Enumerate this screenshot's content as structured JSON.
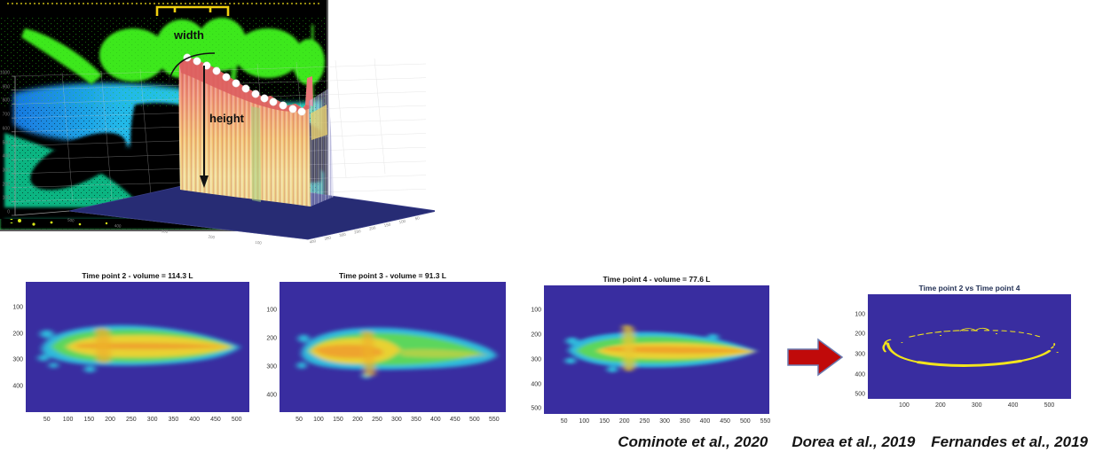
{
  "page": {
    "background": "#ffffff"
  },
  "colors": {
    "arrow_red": "#c00a0a",
    "arrow_border": "#6a7ab0",
    "heatmap_background": "#392da0",
    "blob_edge_cyan": "#2fb9dd",
    "blob_mid_green": "#5bd65b",
    "blob_core_yellow": "#e8d232",
    "blob_hot_orange": "#ee9f2c",
    "difference_yellow": "#f2e41c",
    "floor_navy": "#272c74",
    "depth_bg_cyan": "#1cc6f2",
    "depth_bg_green": "#3cec66",
    "cow_green": "#55e41c"
  },
  "citations": [
    "Cominote et al., 2020",
    "Dorea et al., 2019",
    "Fernandes et al., 2019"
  ],
  "chart_data": [
    {
      "panel": "depth-image-top-view",
      "type": "heatmap",
      "title": "",
      "description": "3D depth-camera point cloud, top view: six green cow bodies over a cyan-to-green depth-gradient floor, black occlusion shadows, feed fence stripes at left, scattered black speckle noise"
    },
    {
      "panel": "depth-image-rear-view",
      "type": "heatmap",
      "title": "",
      "description": "3D depth-camera point cloud, rear view: green cow backs along the top, cyan depth band across the middle, black cow silhouettes feeding below, yellow calibration bracket at top"
    },
    {
      "panel": "surface-3d-cow-body",
      "type": "heatmap",
      "subtype": "3d-surface",
      "title": "",
      "width_label": "width",
      "height_label": "height",
      "marker_dots": 13,
      "z_axis": {
        "ticks": [
          1000,
          900,
          800,
          700,
          600,
          500,
          400,
          300,
          200,
          100,
          0
        ],
        "max": 1000,
        "dir": "y-inv"
      },
      "x_axis": {
        "ticks": [
          500,
          400,
          300,
          200,
          100
        ],
        "max": 500,
        "dir": "x-inv"
      },
      "y_axis": {
        "ticks": [
          400,
          350,
          300,
          250,
          200,
          150,
          100,
          50
        ],
        "max": 400,
        "dir": "x-inv"
      },
      "description": "MATLAB 3D surface of an extracted cow body: red-to-yellow striped surface standing on a dark navy floor, white marker dots along the spine, black arrows annotating width and height"
    },
    {
      "panel": "feed-pile-time-point-2",
      "type": "heatmap",
      "title": "Time point 2 - volume = 114.3 L",
      "volume_liters": 114.3,
      "colormap": "parula",
      "x_axis": {
        "ticks": [
          50,
          100,
          150,
          200,
          250,
          300,
          350,
          400,
          450,
          500
        ],
        "max": 530,
        "dir": "x"
      },
      "y_axis": {
        "ticks": [
          100,
          200,
          300,
          400
        ],
        "max": 500,
        "dir": "y"
      },
      "description": "Elongated feed pile, yellow-orange core with green and cyan fringes on dark indigo background, tapering to a point at the right"
    },
    {
      "panel": "feed-pile-time-point-3",
      "type": "heatmap",
      "title": "Time point 3 - volume = 91.3 L",
      "volume_liters": 91.3,
      "colormap": "parula",
      "x_axis": {
        "ticks": [
          50,
          100,
          150,
          200,
          250,
          300,
          350,
          400,
          450,
          500,
          550
        ],
        "max": 580,
        "dir": "x"
      },
      "y_axis": {
        "ticks": [
          100,
          200,
          300,
          400
        ],
        "max": 460,
        "dir": "y"
      },
      "description": "Feed pile with yellow-orange mass concentrated on the left and a thinner green-cyan tail extending right"
    },
    {
      "panel": "feed-pile-time-point-4",
      "type": "heatmap",
      "title": "Time point 4 - volume = 77.6 L",
      "volume_liters": 77.6,
      "colormap": "parula",
      "x_axis": {
        "ticks": [
          50,
          100,
          150,
          200,
          250,
          300,
          350,
          400,
          450,
          500,
          550
        ],
        "max": 560,
        "dir": "x"
      },
      "y_axis": {
        "ticks": [
          100,
          200,
          300,
          400,
          500
        ],
        "max": 520,
        "dir": "y"
      },
      "description": "Flatter feed pile, yellow central streak with wide cyan fringes, pointed right end"
    },
    {
      "panel": "difference-map",
      "type": "heatmap",
      "title": "Time point 2 vs Time point 4",
      "colormap": "parula",
      "x_axis": {
        "ticks": [
          100,
          200,
          300,
          400,
          500
        ],
        "max": 560,
        "dir": "x"
      },
      "y_axis": {
        "ticks": [
          100,
          200,
          300,
          400,
          500
        ],
        "max": 520,
        "dir": "y"
      },
      "description": "Yellow broken outline ring showing the perimeter difference between the feed pile at time point 2 and time point 4 on a dark indigo background"
    }
  ]
}
